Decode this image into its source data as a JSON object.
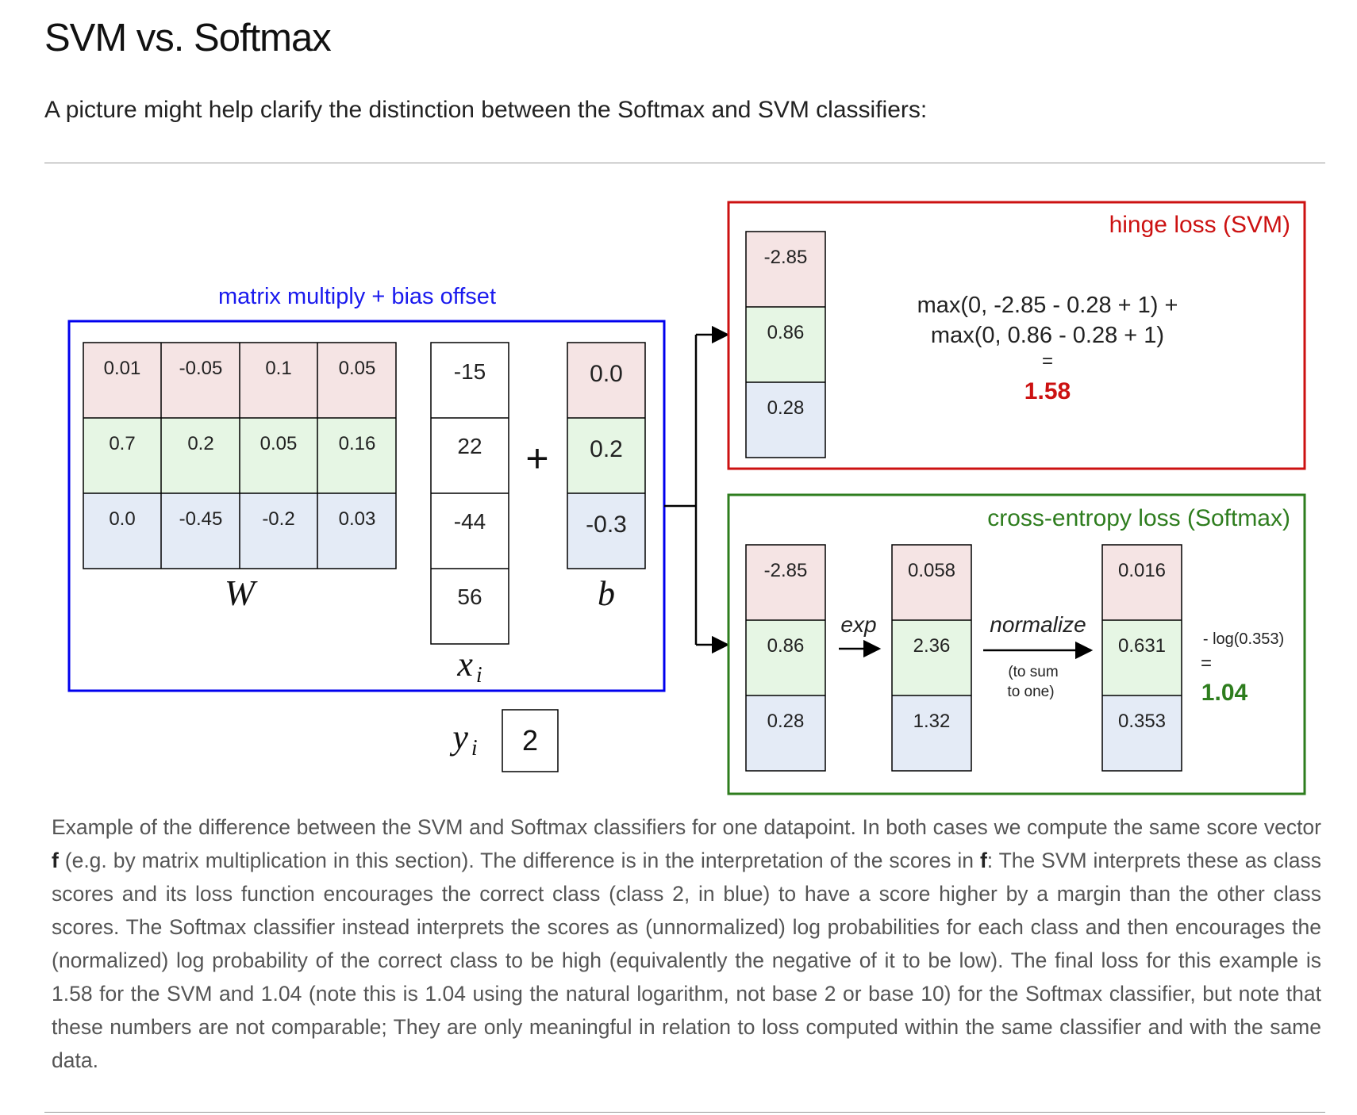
{
  "page": {
    "title": "SVM vs. Softmax",
    "intro": "A picture might help clarify the distinction between the Softmax and SVM classifiers:"
  },
  "figure": {
    "colors": {
      "red_row": "#f5e4e4",
      "green_row": "#e6f6e4",
      "blue_row": "#e4ebf6",
      "linear_box": "#0000ee",
      "svm_box": "#cc1111",
      "softmax_box": "#2e7d1e",
      "svm_result": "#cc1111",
      "softmax_result": "#2e7d1e"
    },
    "linear": {
      "label": "matrix multiply + bias offset",
      "W": [
        [
          "0.01",
          "-0.05",
          "0.1",
          "0.05"
        ],
        [
          "0.7",
          "0.2",
          "0.05",
          "0.16"
        ],
        [
          "0.0",
          "-0.45",
          "-0.2",
          "0.03"
        ]
      ],
      "W_label": "W",
      "x": [
        "-15",
        "22",
        "-44",
        "56"
      ],
      "x_label": "x",
      "x_sub": "i",
      "plus": "+",
      "b": [
        "0.0",
        "0.2",
        "-0.3"
      ],
      "b_label": "b",
      "y_label": "y",
      "y_sub": "i",
      "y_value": "2"
    },
    "svm": {
      "title": "hinge loss (SVM)",
      "scores": [
        "-2.85",
        "0.86",
        "0.28"
      ],
      "formula_line1": "max(0, -2.85 - 0.28 + 1) +",
      "formula_line2": "max(0, 0.86 - 0.28 + 1)",
      "equals": "=",
      "result": "1.58"
    },
    "softmax": {
      "title": "cross-entropy loss (Softmax)",
      "scores": [
        "-2.85",
        "0.86",
        "0.28"
      ],
      "exp_label": "exp",
      "exp_values": [
        "0.058",
        "2.36",
        "1.32"
      ],
      "normalize_label": "normalize",
      "normalize_note_line1": "(to sum",
      "normalize_note_line2": "to one)",
      "probs": [
        "0.016",
        "0.631",
        "0.353"
      ],
      "loss_expr": "- log(0.353)",
      "equals": "=",
      "result": "1.04"
    }
  },
  "caption": {
    "p1": "Example of the difference between the SVM and Softmax classifiers for one datapoint. In both cases we compute the same score vector ",
    "f1": "f",
    "p2": " (e.g. by matrix multiplication in this section). The difference is in the interpretation of the scores in ",
    "f2": "f",
    "p3": ": The SVM interprets these as class scores and its loss function encourages the correct class (class 2, in blue) to have a score higher by a margin than the other class scores. The Softmax classifier instead interprets the scores as (unnormalized) log probabilities for each class and then encourages the (normalized) log probability of the correct class to be high (equivalently the negative of it to be low). The final loss for this example is 1.58 for the SVM and 1.04 (note this is 1.04 using the natural logarithm, not base 2 or base 10) for the Softmax classifier, but note that these numbers are not comparable; They are only meaningful in relation to loss computed within the same classifier and with the same data."
  }
}
